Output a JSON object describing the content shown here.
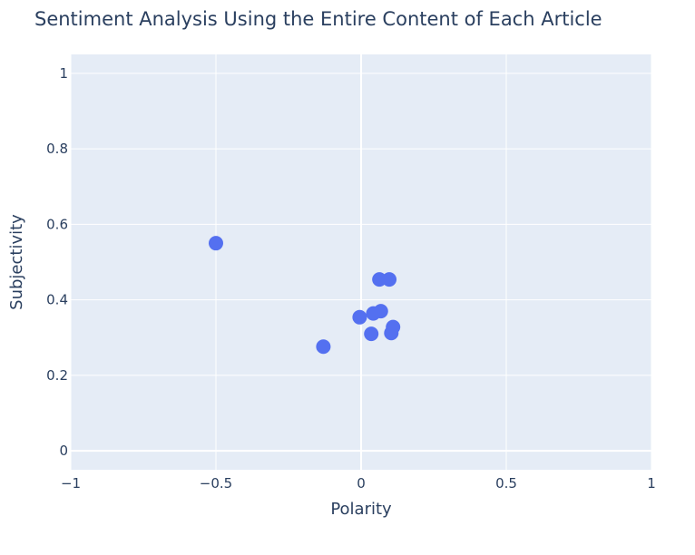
{
  "chart_data": {
    "type": "scatter",
    "title": "Sentiment Analysis Using the Entire Content of Each Article",
    "xlabel": "Polarity",
    "ylabel": "Subjectivity",
    "xlim": [
      -1,
      1
    ],
    "ylim": [
      -0.05,
      1.05
    ],
    "x_ticks": [
      -1,
      -0.5,
      0,
      0.5,
      1
    ],
    "x_tick_labels": [
      "−1",
      "−0.5",
      "0",
      "0.5",
      "1"
    ],
    "y_ticks": [
      0,
      0.2,
      0.4,
      0.6,
      0.8,
      1
    ],
    "y_tick_labels": [
      "0",
      "0.2",
      "0.4",
      "0.6",
      "0.8",
      "1"
    ],
    "grid": true,
    "colors": {
      "marker": "#5470f0",
      "plot_background": "#e5ecf6",
      "grid": "#ffffff",
      "text": "#2a3f5f"
    },
    "series": [
      {
        "points": [
          {
            "x": -0.5,
            "y": 0.55
          },
          {
            "x": -0.13,
            "y": 0.276
          },
          {
            "x": -0.005,
            "y": 0.354
          },
          {
            "x": 0.035,
            "y": 0.31
          },
          {
            "x": 0.042,
            "y": 0.364
          },
          {
            "x": 0.068,
            "y": 0.37
          },
          {
            "x": 0.063,
            "y": 0.454
          },
          {
            "x": 0.097,
            "y": 0.454
          },
          {
            "x": 0.104,
            "y": 0.312
          },
          {
            "x": 0.11,
            "y": 0.328
          }
        ]
      }
    ]
  }
}
